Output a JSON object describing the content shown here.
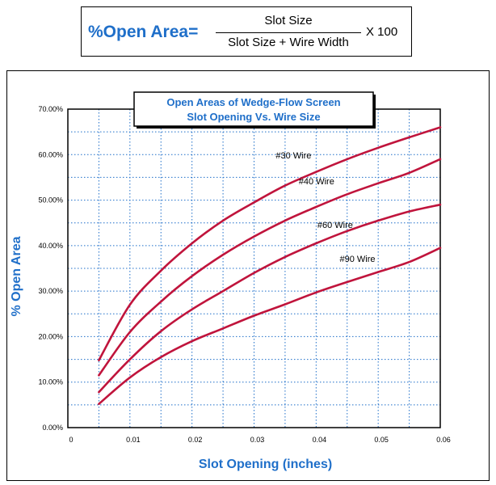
{
  "formula": {
    "lhs": "%Open Area=",
    "numerator": "Slot Size",
    "denominator": "Slot Size + Wire Width",
    "multiplier": "X 100"
  },
  "chart_data": {
    "type": "line",
    "title_lines": [
      "Open Areas of Wedge-Flow Screen",
      "Slot Opening Vs. Wire Size"
    ],
    "xlabel": "Slot Opening (inches)",
    "ylabel": "% Open Area",
    "xlim": [
      0,
      0.06
    ],
    "ylim": [
      0,
      0.7
    ],
    "x_ticks": [
      {
        "value": 0,
        "label": "0"
      },
      {
        "value": 0.01,
        "label": "0.01"
      },
      {
        "value": 0.02,
        "label": "0.02"
      },
      {
        "value": 0.03,
        "label": "0.03"
      },
      {
        "value": 0.04,
        "label": "0.04"
      },
      {
        "value": 0.05,
        "label": "0.05"
      },
      {
        "value": 0.06,
        "label": "0.06"
      }
    ],
    "y_ticks": [
      {
        "value": 0,
        "label": "0.00%"
      },
      {
        "value": 0.1,
        "label": "10.00%"
      },
      {
        "value": 0.2,
        "label": "20.00%"
      },
      {
        "value": 0.3,
        "label": "30.00%"
      },
      {
        "value": 0.4,
        "label": "40.00%"
      },
      {
        "value": 0.5,
        "label": "50.00%"
      },
      {
        "value": 0.6,
        "label": "60.00%"
      },
      {
        "value": 0.7,
        "label": "70.00%"
      }
    ],
    "grid": true,
    "line_color": "#c0143c",
    "accent_color": "#1f6fc9",
    "x": [
      0.005,
      0.01,
      0.015,
      0.02,
      0.025,
      0.03,
      0.035,
      0.04,
      0.045,
      0.05,
      0.055,
      0.06
    ],
    "series": [
      {
        "name": "#30 Wire",
        "label_at": [
          0.0335,
          0.592
        ],
        "values": [
          0.148,
          0.27,
          0.345,
          0.405,
          0.455,
          0.495,
          0.532,
          0.562,
          0.59,
          0.615,
          0.638,
          0.66
        ]
      },
      {
        "name": "#40 Wire",
        "label_at": [
          0.0372,
          0.535
        ],
        "values": [
          0.115,
          0.21,
          0.277,
          0.333,
          0.38,
          0.42,
          0.455,
          0.485,
          0.513,
          0.537,
          0.56,
          0.59
        ]
      },
      {
        "name": "#60 Wire",
        "label_at": [
          0.0402,
          0.439
        ],
        "values": [
          0.078,
          0.15,
          0.212,
          0.26,
          0.3,
          0.34,
          0.375,
          0.405,
          0.432,
          0.455,
          0.475,
          0.49
        ]
      },
      {
        "name": "#90 Wire",
        "label_at": [
          0.0438,
          0.364
        ],
        "values": [
          0.052,
          0.11,
          0.155,
          0.19,
          0.218,
          0.246,
          0.271,
          0.297,
          0.32,
          0.342,
          0.364,
          0.395
        ]
      }
    ]
  }
}
